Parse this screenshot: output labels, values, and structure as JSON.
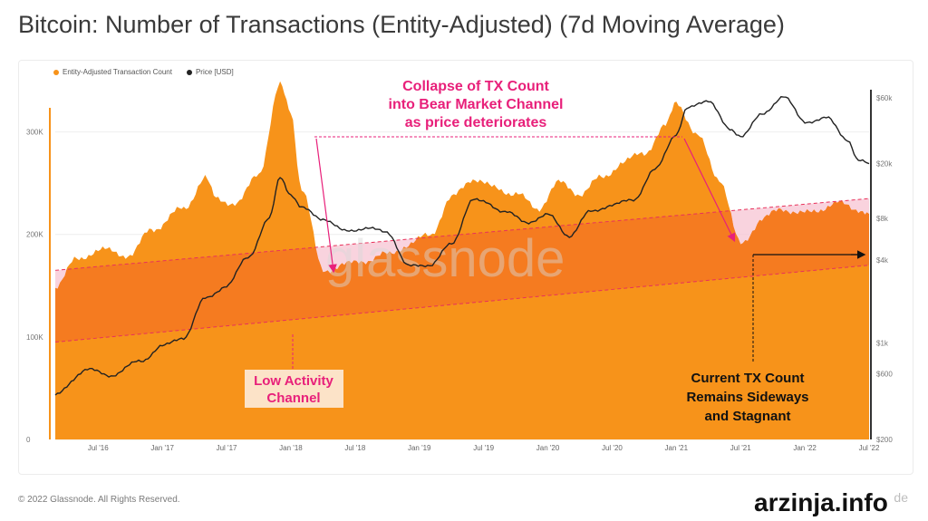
{
  "title": "Bitcoin: Number of Transactions (Entity-Adjusted) (7d Moving Average)",
  "footer": {
    "copyright": "© 2022 Glassnode. All Rights Reserved.",
    "brand": "glassnode"
  },
  "watermark": "glassnode",
  "site_badge": "arzinja.info",
  "colors": {
    "tx": "#f7931a",
    "tx_dark_band": "#f57b20",
    "band_line": "#e8315b",
    "pink_fill": "#f8c8d6",
    "price": "#222222",
    "annotation_pink": "#e8207a",
    "annotation_box": "#fce3c8"
  },
  "legend": {
    "tx_label": "Entity-Adjusted Transaction Count",
    "price_label": "Price [USD]"
  },
  "annotations": {
    "collapse": [
      "Collapse of TX Count",
      "into Bear Market Channel",
      "as price deteriorates"
    ],
    "low_activity": [
      "Low Activity",
      "Channel"
    ],
    "current": [
      "Current TX Count",
      "Remains Sideways",
      "and Stagnant"
    ]
  },
  "chart_data": {
    "type": "area",
    "x_tick_labels": [
      "Jul '16",
      "Jan '17",
      "Jul '17",
      "Jan '18",
      "Jul '18",
      "Jan '19",
      "Jul '19",
      "Jan '20",
      "Jul '20",
      "Jan '21",
      "Jul '21",
      "Jan '22",
      "Jul '22"
    ],
    "x_range": [
      "2016-03",
      "2022-07"
    ],
    "y_left": {
      "ticks": [
        "0",
        "100K",
        "200K",
        "300K"
      ],
      "range": [
        0,
        350000
      ]
    },
    "y_right": {
      "scale": "log",
      "ticks": [
        "$200",
        "$600",
        "$1k",
        "$4k",
        "$8k",
        "$20k",
        "$60k"
      ],
      "range": [
        200,
        80000
      ]
    },
    "bear_channel": {
      "upper": [
        [
          "2016-03",
          165000
        ],
        [
          "2022-07",
          235000
        ]
      ],
      "lower": [
        [
          "2016-03",
          95000
        ],
        [
          "2022-07",
          170000
        ]
      ]
    },
    "series": [
      {
        "name": "Entity-Adjusted Transaction Count",
        "axis": "left",
        "points": [
          [
            "2016-03",
            150000
          ],
          [
            "2016-05",
            175000
          ],
          [
            "2016-07",
            185000
          ],
          [
            "2016-10",
            180000
          ],
          [
            "2016-12",
            205000
          ],
          [
            "2017-03",
            225000
          ],
          [
            "2017-05",
            255000
          ],
          [
            "2017-06",
            235000
          ],
          [
            "2017-08",
            230000
          ],
          [
            "2017-10",
            260000
          ],
          [
            "2017-12",
            345000
          ],
          [
            "2018-01",
            320000
          ],
          [
            "2018-02",
            245000
          ],
          [
            "2018-04",
            165000
          ],
          [
            "2018-06",
            170000
          ],
          [
            "2018-08",
            175000
          ],
          [
            "2018-10",
            180000
          ],
          [
            "2018-12",
            190000
          ],
          [
            "2019-02",
            200000
          ],
          [
            "2019-04",
            235000
          ],
          [
            "2019-06",
            255000
          ],
          [
            "2019-08",
            245000
          ],
          [
            "2019-10",
            240000
          ],
          [
            "2019-12",
            225000
          ],
          [
            "2020-02",
            250000
          ],
          [
            "2020-04",
            240000
          ],
          [
            "2020-06",
            255000
          ],
          [
            "2020-08",
            270000
          ],
          [
            "2020-10",
            280000
          ],
          [
            "2020-12",
            305000
          ],
          [
            "2021-01",
            330000
          ],
          [
            "2021-03",
            295000
          ],
          [
            "2021-05",
            255000
          ],
          [
            "2021-07",
            190000
          ],
          [
            "2021-09",
            215000
          ],
          [
            "2021-11",
            225000
          ],
          [
            "2022-01",
            220000
          ],
          [
            "2022-04",
            230000
          ],
          [
            "2022-06",
            225000
          ],
          [
            "2022-07",
            220000
          ]
        ]
      },
      {
        "name": "Price [USD]",
        "axis": "right",
        "points": [
          [
            "2016-03",
            420
          ],
          [
            "2016-06",
            650
          ],
          [
            "2016-08",
            580
          ],
          [
            "2016-11",
            740
          ],
          [
            "2017-01",
            950
          ],
          [
            "2017-03",
            1100
          ],
          [
            "2017-05",
            2100
          ],
          [
            "2017-07",
            2600
          ],
          [
            "2017-09",
            4200
          ],
          [
            "2017-11",
            8000
          ],
          [
            "2017-12",
            16000
          ],
          [
            "2018-01",
            12000
          ],
          [
            "2018-02",
            9500
          ],
          [
            "2018-04",
            8000
          ],
          [
            "2018-06",
            6500
          ],
          [
            "2018-08",
            6800
          ],
          [
            "2018-10",
            6400
          ],
          [
            "2018-12",
            3600
          ],
          [
            "2019-02",
            3700
          ],
          [
            "2019-04",
            5200
          ],
          [
            "2019-06",
            11000
          ],
          [
            "2019-07",
            10500
          ],
          [
            "2019-09",
            9000
          ],
          [
            "2019-11",
            7500
          ],
          [
            "2020-01",
            8500
          ],
          [
            "2020-03",
            6000
          ],
          [
            "2020-05",
            9000
          ],
          [
            "2020-07",
            10000
          ],
          [
            "2020-09",
            11000
          ],
          [
            "2020-11",
            18000
          ],
          [
            "2021-01",
            33000
          ],
          [
            "2021-02",
            50000
          ],
          [
            "2021-04",
            58000
          ],
          [
            "2021-06",
            35000
          ],
          [
            "2021-07",
            32000
          ],
          [
            "2021-09",
            45000
          ],
          [
            "2021-11",
            62000
          ],
          [
            "2022-01",
            40000
          ],
          [
            "2022-03",
            43000
          ],
          [
            "2022-05",
            30000
          ],
          [
            "2022-06",
            21000
          ],
          [
            "2022-07",
            20000
          ]
        ]
      }
    ]
  }
}
